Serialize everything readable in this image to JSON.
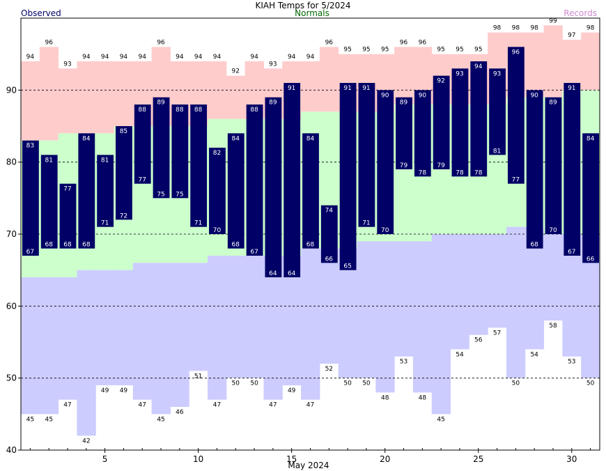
{
  "chart_data": {
    "type": "bar",
    "title": "KIAH Temps for 5/2024",
    "xlabel": "May 2024",
    "ylabel": "",
    "legend": {
      "observed": "Observed",
      "normals": "Normals",
      "records": "Records",
      "placement": "top"
    },
    "colors": {
      "observed_bar": "#000066",
      "normal_band": "#ccffcc",
      "record_high_band": "#ffcccc",
      "record_low_band": "#ccccff",
      "observed_text": "#000066",
      "normals_text": "#006600",
      "records_text": "#cc88cc",
      "grid": "#000000"
    },
    "ylim": [
      40,
      100
    ],
    "y_ticks": [
      40,
      50,
      60,
      70,
      80,
      90
    ],
    "x_ticks": [
      5,
      10,
      15,
      20,
      25,
      30
    ],
    "grid": "horizontal dashed",
    "days": [
      1,
      2,
      3,
      4,
      5,
      6,
      7,
      8,
      9,
      10,
      11,
      12,
      13,
      14,
      15,
      16,
      17,
      18,
      19,
      20,
      21,
      22,
      23,
      24,
      25,
      26,
      27,
      28,
      29,
      30,
      31
    ],
    "series": [
      {
        "name": "Observed",
        "role": "obs_high",
        "values": [
          83,
          81,
          77,
          84,
          81,
          85,
          88,
          89,
          88,
          88,
          82,
          84,
          88,
          89,
          91,
          84,
          74,
          91,
          91,
          90,
          89,
          90,
          92,
          93,
          94,
          93,
          96,
          90,
          89,
          91,
          84
        ]
      },
      {
        "name": "Observed",
        "role": "obs_low",
        "values": [
          67,
          68,
          68,
          68,
          71,
          72,
          77,
          75,
          75,
          71,
          70,
          68,
          67,
          64,
          64,
          68,
          66,
          65,
          71,
          70,
          79,
          78,
          79,
          78,
          78,
          81,
          77,
          68,
          70,
          67,
          66
        ]
      },
      {
        "name": "Records",
        "role": "record_high",
        "values": [
          94,
          96,
          93,
          94,
          94,
          94,
          94,
          96,
          94,
          94,
          94,
          92,
          94,
          93,
          94,
          94,
          96,
          95,
          95,
          95,
          96,
          96,
          95,
          95,
          95,
          98,
          98,
          98,
          99,
          97,
          98
        ]
      },
      {
        "name": "Records",
        "role": "record_low",
        "values": [
          45,
          45,
          47,
          42,
          49,
          49,
          47,
          45,
          46,
          51,
          47,
          50,
          50,
          47,
          49,
          47,
          52,
          50,
          50,
          48,
          53,
          48,
          45,
          54,
          56,
          57,
          50,
          54,
          58,
          53,
          50
        ]
      },
      {
        "name": "Normals",
        "role": "normal_high",
        "values": [
          83,
          83,
          84,
          84,
          84,
          85,
          85,
          85,
          85,
          85,
          86,
          86,
          86,
          86,
          86,
          87,
          87,
          87,
          87,
          87,
          88,
          88,
          88,
          88,
          88,
          88,
          89,
          89,
          89,
          90,
          90
        ]
      },
      {
        "name": "Normals",
        "role": "normal_low",
        "values": [
          64,
          64,
          64,
          65,
          65,
          65,
          66,
          66,
          66,
          66,
          67,
          67,
          67,
          67,
          67,
          68,
          68,
          68,
          69,
          69,
          69,
          69,
          70,
          70,
          70,
          70,
          71,
          71,
          70,
          70,
          70
        ]
      }
    ]
  }
}
